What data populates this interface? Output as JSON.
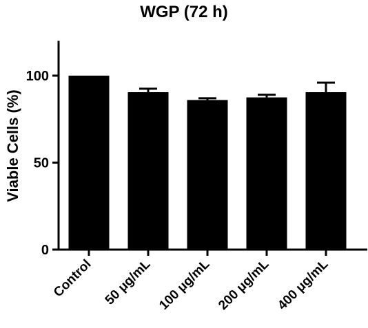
{
  "chart_data": {
    "type": "bar",
    "title": "WGP  (72 h)",
    "xlabel": "",
    "ylabel": "Viable Cells (%)",
    "ylim": [
      0,
      120
    ],
    "yticks": [
      0,
      50,
      100
    ],
    "ytick_labels": [
      "0",
      "50",
      "100"
    ],
    "categories": [
      "Control",
      "50 μg/mL",
      "100 μg/mL",
      "200 μg/mL",
      "400 μg/mL"
    ],
    "values": [
      100,
      90.5,
      86,
      87.5,
      90.5
    ],
    "errors": [
      0,
      2,
      1,
      1.5,
      5.5
    ],
    "bar_color": "#000000",
    "grid": false,
    "legend": "none"
  }
}
